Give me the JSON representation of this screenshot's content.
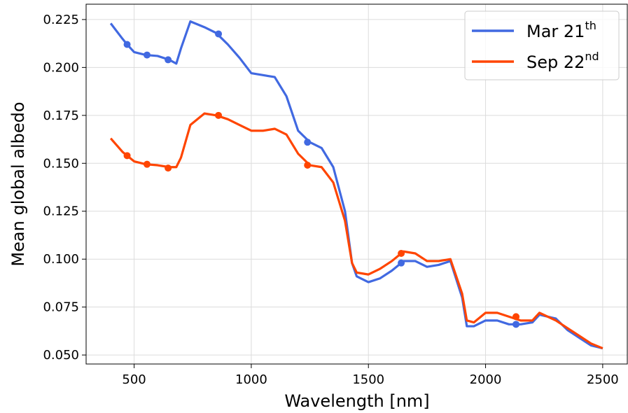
{
  "chart_data": {
    "type": "line",
    "xlabel": "Wavelength [nm]",
    "ylabel": "Mean global albedo",
    "x": [
      400,
      450,
      470,
      500,
      550,
      600,
      650,
      680,
      700,
      740,
      800,
      850,
      900,
      950,
      1000,
      1050,
      1100,
      1150,
      1200,
      1250,
      1300,
      1350,
      1400,
      1430,
      1450,
      1500,
      1550,
      1600,
      1650,
      1700,
      1750,
      1800,
      1850,
      1900,
      1920,
      1950,
      2000,
      2050,
      2100,
      2150,
      2200,
      2230,
      2300,
      2350,
      2400,
      2450,
      2500
    ],
    "series": [
      {
        "name": "Mar 21",
        "name_sup": "th",
        "color": "#4169e1",
        "values": [
          0.223,
          0.215,
          0.212,
          0.208,
          0.2065,
          0.206,
          0.204,
          0.202,
          0.21,
          0.224,
          0.221,
          0.218,
          0.212,
          0.205,
          0.197,
          0.196,
          0.195,
          0.185,
          0.167,
          0.161,
          0.158,
          0.148,
          0.125,
          0.098,
          0.091,
          0.088,
          0.09,
          0.094,
          0.099,
          0.099,
          0.096,
          0.097,
          0.099,
          0.08,
          0.065,
          0.065,
          0.068,
          0.068,
          0.066,
          0.066,
          0.067,
          0.071,
          0.069,
          0.063,
          0.059,
          0.055,
          0.0535
        ],
        "marker_x": [
          470,
          555,
          645,
          860,
          1240,
          1640,
          2130
        ],
        "marker_values": [
          0.212,
          0.2065,
          0.204,
          0.2175,
          0.161,
          0.098,
          0.066
        ]
      },
      {
        "name": "Sep 22",
        "name_sup": "nd",
        "color": "#ff4500",
        "values": [
          0.163,
          0.156,
          0.154,
          0.151,
          0.1495,
          0.149,
          0.148,
          0.148,
          0.153,
          0.17,
          0.176,
          0.175,
          0.173,
          0.17,
          0.167,
          0.167,
          0.168,
          0.165,
          0.155,
          0.149,
          0.148,
          0.14,
          0.12,
          0.098,
          0.093,
          0.092,
          0.095,
          0.099,
          0.104,
          0.103,
          0.099,
          0.099,
          0.1,
          0.082,
          0.068,
          0.067,
          0.072,
          0.072,
          0.07,
          0.068,
          0.068,
          0.072,
          0.068,
          0.064,
          0.06,
          0.056,
          0.0535
        ],
        "marker_x": [
          470,
          555,
          645,
          860,
          1240,
          1640,
          2130
        ],
        "marker_values": [
          0.154,
          0.1495,
          0.1475,
          0.175,
          0.149,
          0.103,
          0.07
        ]
      }
    ],
    "xlim": [
      295,
      2605
    ],
    "ylim": [
      0.0453,
      0.233
    ],
    "xticks": [
      500,
      1000,
      1500,
      2000,
      2500
    ],
    "yticks": [
      {
        "value": 0.05,
        "label": "0.050"
      },
      0.075,
      {
        "value": 0.1,
        "label": "0.100"
      },
      0.125,
      {
        "value": 0.15,
        "label": "0.150"
      },
      0.175,
      {
        "value": 0.2,
        "label": "0.200"
      },
      0.225
    ],
    "grid": true,
    "legend": "upper right"
  }
}
